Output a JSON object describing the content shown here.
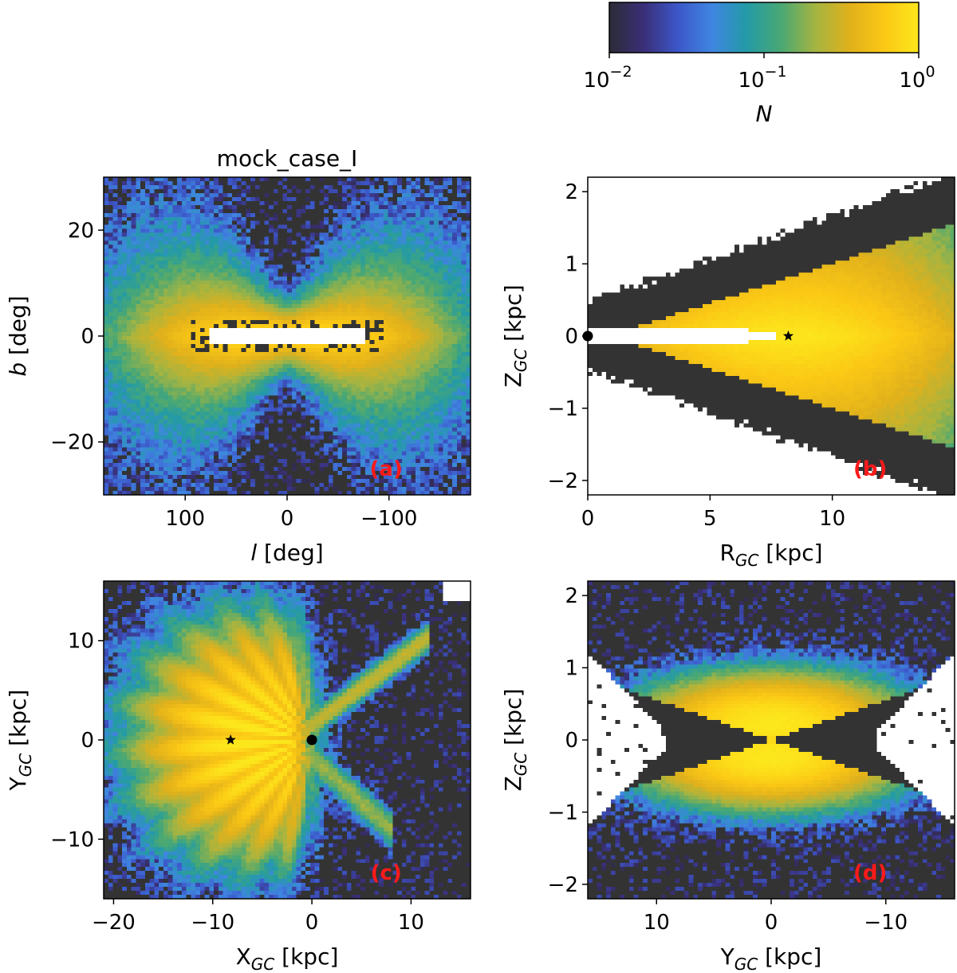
{
  "colors": {
    "cmap": [
      "#2b2b36",
      "#3a2f78",
      "#3c57c9",
      "#3f86e0",
      "#239aa6",
      "#4aa873",
      "#a5b441",
      "#e1b11b",
      "#fbc815",
      "#fce71c"
    ],
    "empty": "#333333",
    "panel_label": "#ff1a1a"
  },
  "colorbar": {
    "ticks": [
      {
        "base": "10",
        "exp": "−2",
        "value": 0.01
      },
      {
        "base": "10",
        "exp": "−1",
        "value": 0.1
      },
      {
        "base": "10",
        "exp": "0",
        "value": 1
      }
    ],
    "label": "N",
    "scale": "log",
    "range": [
      0.01,
      1
    ]
  },
  "chart_data": [
    {
      "id": "a",
      "type": "heatmap",
      "title": "mock_case_I",
      "xlabel": {
        "main": "l",
        "italic": true,
        "unit": " [deg]"
      },
      "ylabel": {
        "main": "b",
        "italic": true,
        "unit": " [deg]"
      },
      "xlim": [
        180,
        -180
      ],
      "ylim": [
        -30,
        30
      ],
      "xticks": [
        {
          "v": 100,
          "t": "100"
        },
        {
          "v": 0,
          "t": "0"
        },
        {
          "v": -100,
          "t": "−100"
        }
      ],
      "yticks": [
        {
          "v": -20,
          "t": "−20"
        },
        {
          "v": 0,
          "t": "0"
        },
        {
          "v": 20,
          "t": "20"
        }
      ],
      "panel_label": "(a)",
      "markers": []
    },
    {
      "id": "b",
      "type": "heatmap",
      "title": "",
      "xlabel": {
        "main": "R",
        "sub": "GC",
        "unit": " [kpc]"
      },
      "ylabel": {
        "main": "Z",
        "sub": "GC",
        "unit": " [kpc]"
      },
      "xlim": [
        0,
        15
      ],
      "ylim": [
        -2.2,
        2.2
      ],
      "xticks": [
        {
          "v": 0,
          "t": "0"
        },
        {
          "v": 5,
          "t": "5"
        },
        {
          "v": 10,
          "t": "10"
        }
      ],
      "yticks": [
        {
          "v": -2,
          "t": "−2"
        },
        {
          "v": -1,
          "t": "−1"
        },
        {
          "v": 0,
          "t": "0"
        },
        {
          "v": 1,
          "t": "1"
        },
        {
          "v": 2,
          "t": "2"
        }
      ],
      "panel_label": "(b)",
      "markers": [
        {
          "kind": "dot",
          "x": 0,
          "y": 0
        },
        {
          "kind": "star",
          "x": 8.2,
          "y": 0
        }
      ]
    },
    {
      "id": "c",
      "type": "heatmap",
      "title": "",
      "xlabel": {
        "main": "X",
        "sub": "GC",
        "unit": " [kpc]"
      },
      "ylabel": {
        "main": "Y",
        "sub": "GC",
        "unit": " [kpc]"
      },
      "xlim": [
        -21,
        16
      ],
      "ylim": [
        -16,
        16
      ],
      "xticks": [
        {
          "v": -20,
          "t": "−20"
        },
        {
          "v": -10,
          "t": "−10"
        },
        {
          "v": 0,
          "t": "0"
        },
        {
          "v": 10,
          "t": "10"
        }
      ],
      "yticks": [
        {
          "v": -10,
          "t": "−10"
        },
        {
          "v": 0,
          "t": "0"
        },
        {
          "v": 10,
          "t": "10"
        }
      ],
      "panel_label": "(c)",
      "markers": [
        {
          "kind": "star",
          "x": -8.2,
          "y": 0
        },
        {
          "kind": "dot",
          "x": 0,
          "y": 0
        }
      ]
    },
    {
      "id": "d",
      "type": "heatmap",
      "title": "",
      "xlabel": {
        "main": "Y",
        "sub": "GC",
        "unit": " [kpc]"
      },
      "ylabel": {
        "main": "Z",
        "sub": "GC",
        "unit": " [kpc]"
      },
      "xlim": [
        16,
        -16
      ],
      "ylim": [
        -2.2,
        2.2
      ],
      "xticks": [
        {
          "v": 10,
          "t": "10"
        },
        {
          "v": 0,
          "t": "0"
        },
        {
          "v": -10,
          "t": "−10"
        }
      ],
      "yticks": [
        {
          "v": -2,
          "t": "−2"
        },
        {
          "v": -1,
          "t": "−1"
        },
        {
          "v": 0,
          "t": "0"
        },
        {
          "v": 1,
          "t": "1"
        },
        {
          "v": 2,
          "t": "2"
        }
      ],
      "panel_label": "(d)",
      "markers": []
    }
  ]
}
